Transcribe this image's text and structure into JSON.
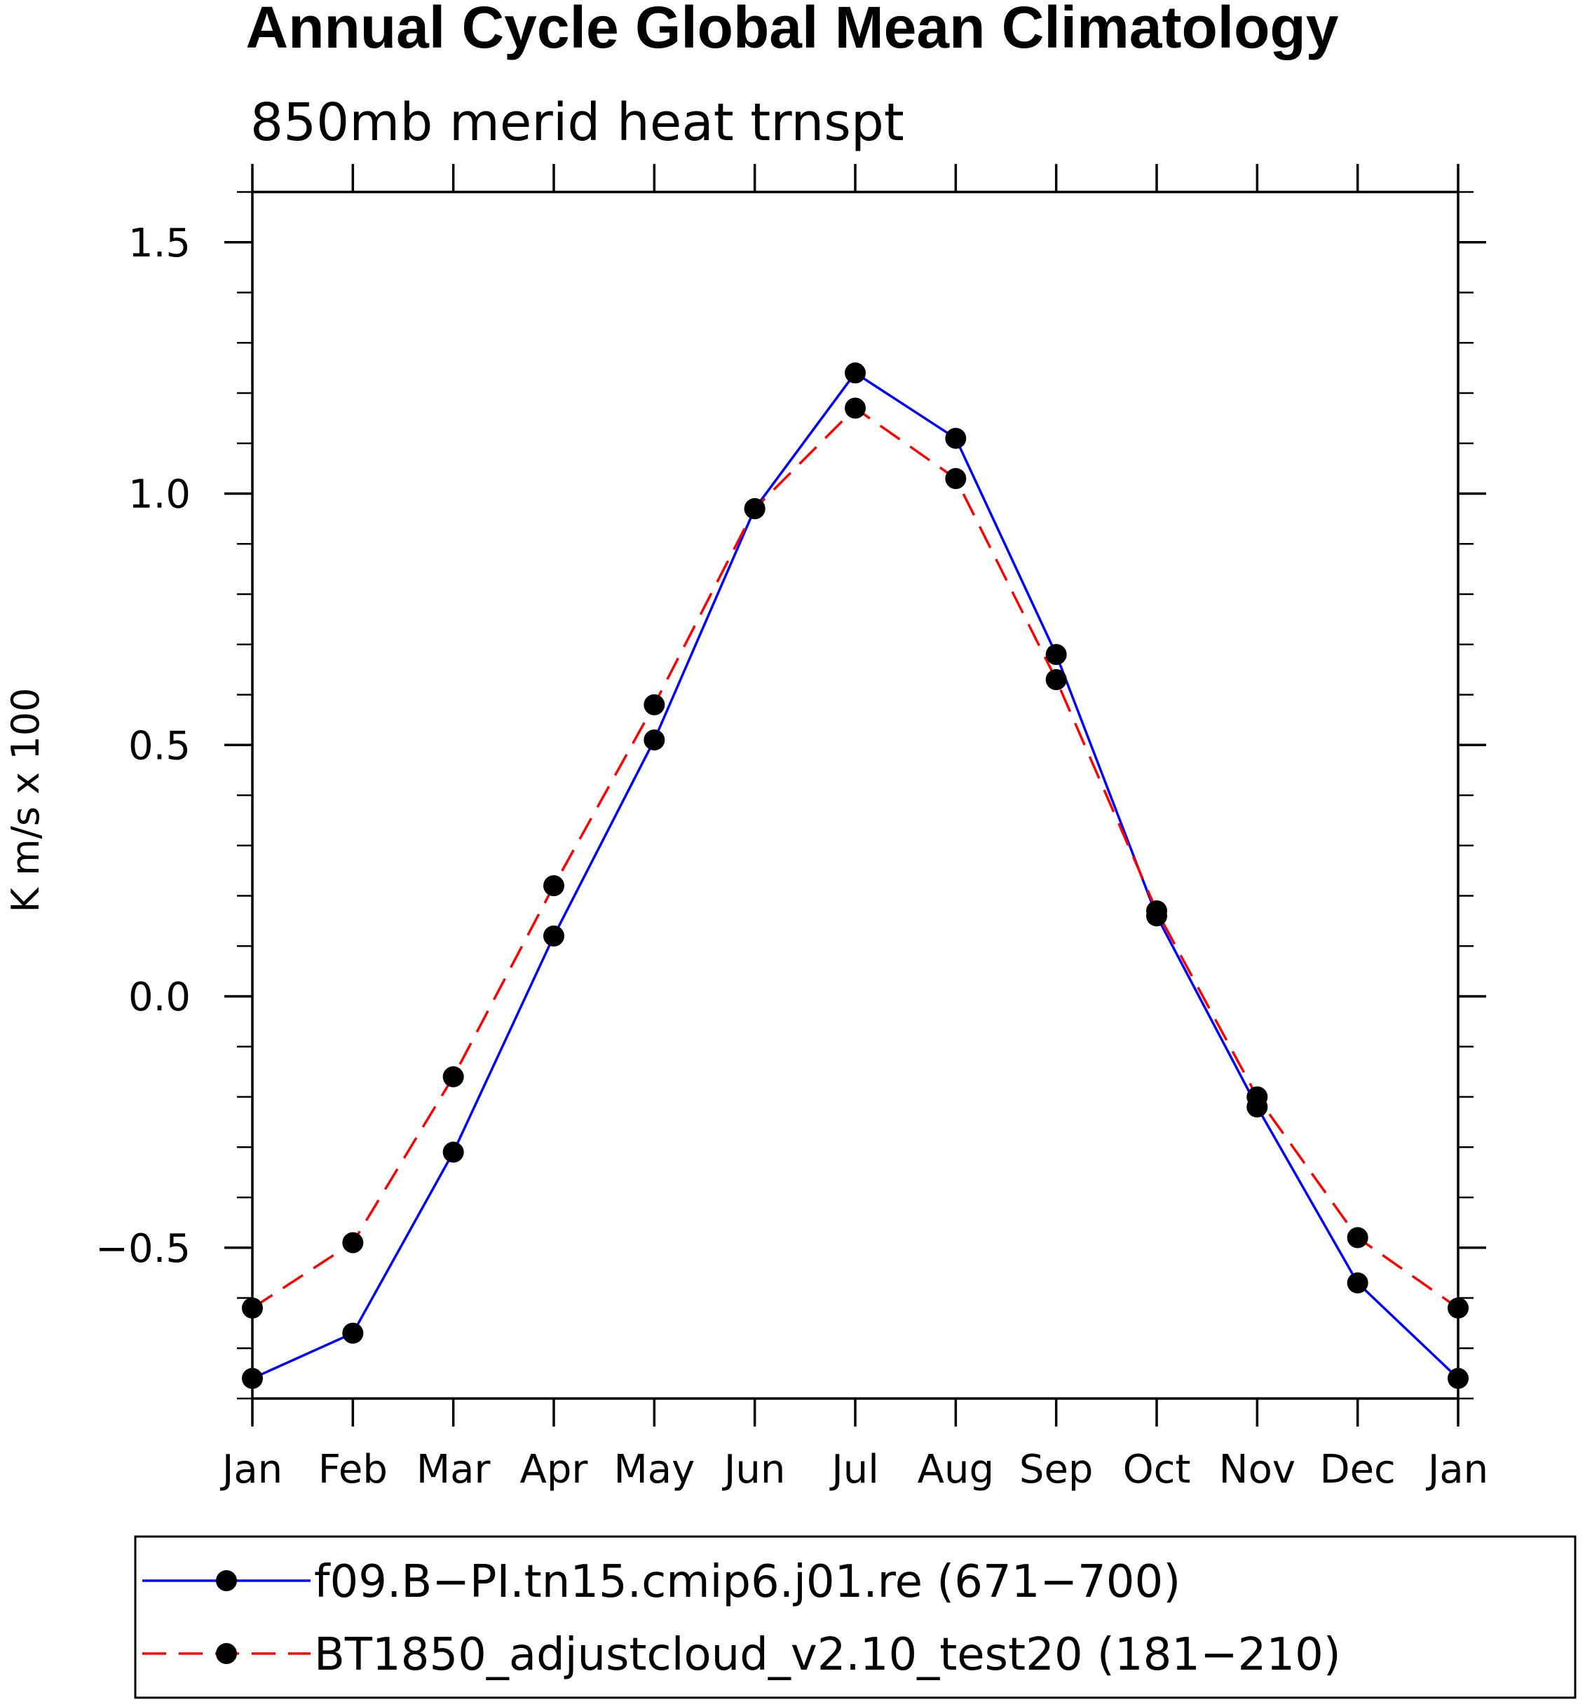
{
  "chart_data": {
    "type": "line",
    "title": "Annual Cycle Global Mean Climatology",
    "subtitle": "850mb merid heat trnspt",
    "ylabel": "K m/s x 100",
    "xlabel": "",
    "categories": [
      "Jan",
      "Feb",
      "Mar",
      "Apr",
      "May",
      "Jun",
      "Jul",
      "Aug",
      "Sep",
      "Oct",
      "Nov",
      "Dec",
      "Jan"
    ],
    "ylim": [
      -0.8,
      1.6
    ],
    "yticks": [
      -0.5,
      0.0,
      0.5,
      1.0,
      1.5
    ],
    "ytick_labels": [
      "−0.5",
      "0.0",
      "0.5",
      "1.0",
      "1.5"
    ],
    "series": [
      {
        "name": "f09.B-PI.tn15.cmip6.j01.re (671-700)",
        "label": "f09.B−PI.tn15.cmip6.j01.re (671−700)",
        "color": "#0000ff",
        "dash": "solid",
        "values": [
          -0.76,
          -0.67,
          -0.31,
          0.12,
          0.51,
          0.97,
          1.24,
          1.11,
          0.68,
          0.16,
          -0.22,
          -0.57,
          -0.76
        ]
      },
      {
        "name": "BT1850_adjustcloud_v2.10_test20 (181-210)",
        "label": "BT1850_adjustcloud_v2.10_test20 (181−210)",
        "color": "#ff0000",
        "dash": "dashed",
        "values": [
          -0.62,
          -0.49,
          -0.16,
          0.22,
          0.58,
          0.97,
          1.17,
          1.03,
          0.63,
          0.17,
          -0.2,
          -0.48,
          -0.62
        ]
      }
    ],
    "marker": "filled-circle",
    "marker_color": "#000000",
    "legend_position": "bottom"
  }
}
